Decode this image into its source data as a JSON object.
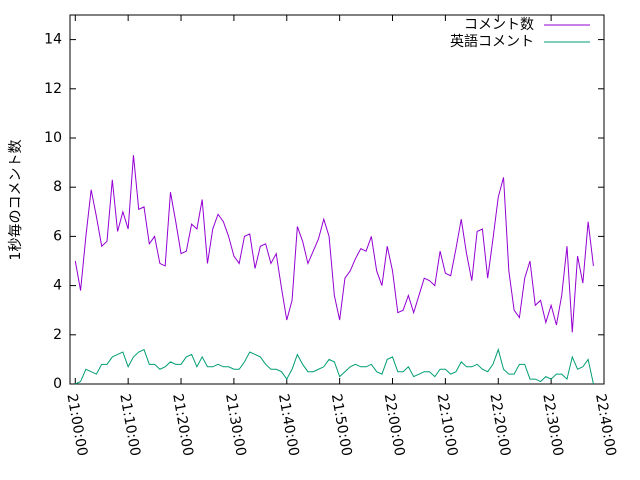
{
  "chart_data": {
    "type": "line",
    "ylabel": "1秒毎のコメント数",
    "x": [
      "21:00:00",
      "21:01:00",
      "21:02:00",
      "21:03:00",
      "21:04:00",
      "21:05:00",
      "21:06:00",
      "21:07:00",
      "21:08:00",
      "21:09:00",
      "21:10:00",
      "21:11:00",
      "21:12:00",
      "21:13:00",
      "21:14:00",
      "21:15:00",
      "21:16:00",
      "21:17:00",
      "21:18:00",
      "21:19:00",
      "21:20:00",
      "21:21:00",
      "21:22:00",
      "21:23:00",
      "21:24:00",
      "21:25:00",
      "21:26:00",
      "21:27:00",
      "21:28:00",
      "21:29:00",
      "21:30:00",
      "21:31:00",
      "21:32:00",
      "21:33:00",
      "21:34:00",
      "21:35:00",
      "21:36:00",
      "21:37:00",
      "21:38:00",
      "21:39:00",
      "21:40:00",
      "21:41:00",
      "21:42:00",
      "21:43:00",
      "21:44:00",
      "21:45:00",
      "21:46:00",
      "21:47:00",
      "21:48:00",
      "21:49:00",
      "21:50:00",
      "21:51:00",
      "21:52:00",
      "21:53:00",
      "21:54:00",
      "21:55:00",
      "21:56:00",
      "21:57:00",
      "21:58:00",
      "21:59:00",
      "22:00:00",
      "22:01:00",
      "22:02:00",
      "22:03:00",
      "22:04:00",
      "22:05:00",
      "22:06:00",
      "22:07:00",
      "22:08:00",
      "22:09:00",
      "22:10:00",
      "22:11:00",
      "22:12:00",
      "22:13:00",
      "22:14:00",
      "22:15:00",
      "22:16:00",
      "22:17:00",
      "22:18:00",
      "22:19:00",
      "22:20:00",
      "22:21:00",
      "22:22:00",
      "22:23:00",
      "22:24:00",
      "22:25:00",
      "22:26:00",
      "22:27:00",
      "22:28:00",
      "22:29:00",
      "22:30:00",
      "22:31:00",
      "22:32:00",
      "22:33:00",
      "22:34:00",
      "22:35:00",
      "22:36:00",
      "22:37:00",
      "22:38:00"
    ],
    "series": [
      {
        "name": "コメント数",
        "color": "#9400d3",
        "values": [
          5.0,
          3.8,
          6.0,
          7.9,
          6.8,
          5.6,
          5.8,
          8.3,
          6.2,
          7.0,
          6.3,
          9.3,
          7.1,
          7.2,
          5.7,
          6.0,
          4.9,
          4.8,
          7.8,
          6.6,
          5.3,
          5.4,
          6.5,
          6.3,
          7.5,
          4.9,
          6.3,
          6.9,
          6.6,
          6.0,
          5.2,
          4.9,
          6.0,
          6.1,
          4.7,
          5.6,
          5.7,
          4.9,
          5.3,
          3.9,
          2.6,
          3.4,
          6.4,
          5.8,
          4.9,
          5.4,
          5.9,
          6.7,
          6.0,
          3.6,
          2.6,
          4.3,
          4.6,
          5.1,
          5.5,
          5.4,
          6.0,
          4.6,
          4.0,
          5.6,
          4.6,
          2.9,
          3.0,
          3.6,
          2.9,
          3.6,
          4.3,
          4.2,
          4.0,
          5.4,
          4.5,
          4.4,
          5.5,
          6.7,
          5.3,
          4.2,
          6.2,
          6.3,
          4.3,
          5.9,
          7.6,
          8.4,
          4.6,
          3.0,
          2.7,
          4.3,
          5.0,
          3.2,
          3.4,
          2.5,
          3.2,
          2.4,
          3.6,
          5.6,
          2.1,
          5.2,
          4.1,
          6.6,
          4.8
        ]
      },
      {
        "name": "英語コメント",
        "color": "#009e73",
        "values": [
          0,
          0.1,
          0.6,
          0.5,
          0.4,
          0.8,
          0.8,
          1.1,
          1.2,
          1.3,
          0.7,
          1.1,
          1.3,
          1.4,
          0.8,
          0.8,
          0.6,
          0.7,
          0.9,
          0.8,
          0.8,
          1.1,
          1.2,
          0.7,
          1.1,
          0.7,
          0.7,
          0.8,
          0.7,
          0.7,
          0.6,
          0.6,
          0.9,
          1.3,
          1.2,
          1.1,
          0.8,
          0.6,
          0.6,
          0.5,
          0.2,
          0.6,
          1.2,
          0.8,
          0.5,
          0.5,
          0.6,
          0.7,
          1.0,
          0.9,
          0.3,
          0.5,
          0.7,
          0.8,
          0.7,
          0.7,
          0.8,
          0.5,
          0.4,
          1.0,
          1.1,
          0.5,
          0.5,
          0.7,
          0.3,
          0.4,
          0.5,
          0.5,
          0.3,
          0.6,
          0.6,
          0.4,
          0.5,
          0.9,
          0.7,
          0.7,
          0.8,
          0.6,
          0.5,
          0.8,
          1.4,
          0.6,
          0.4,
          0.4,
          0.8,
          0.8,
          0.2,
          0.2,
          0.1,
          0.3,
          0.2,
          0.4,
          0.4,
          0.2,
          1.1,
          0.6,
          0.7,
          1.0,
          0.0
        ]
      }
    ],
    "xlim": [
      "20:59:00",
      "22:40:00"
    ],
    "xticks": [
      "21:00:00",
      "21:10:00",
      "21:20:00",
      "21:30:00",
      "21:40:00",
      "21:50:00",
      "22:00:00",
      "22:10:00",
      "22:20:00",
      "22:30:00",
      "22:40:00"
    ],
    "ylim": [
      0,
      15
    ],
    "yticks": [
      0,
      2,
      4,
      6,
      8,
      10,
      12,
      14
    ],
    "legend": "top-right"
  }
}
